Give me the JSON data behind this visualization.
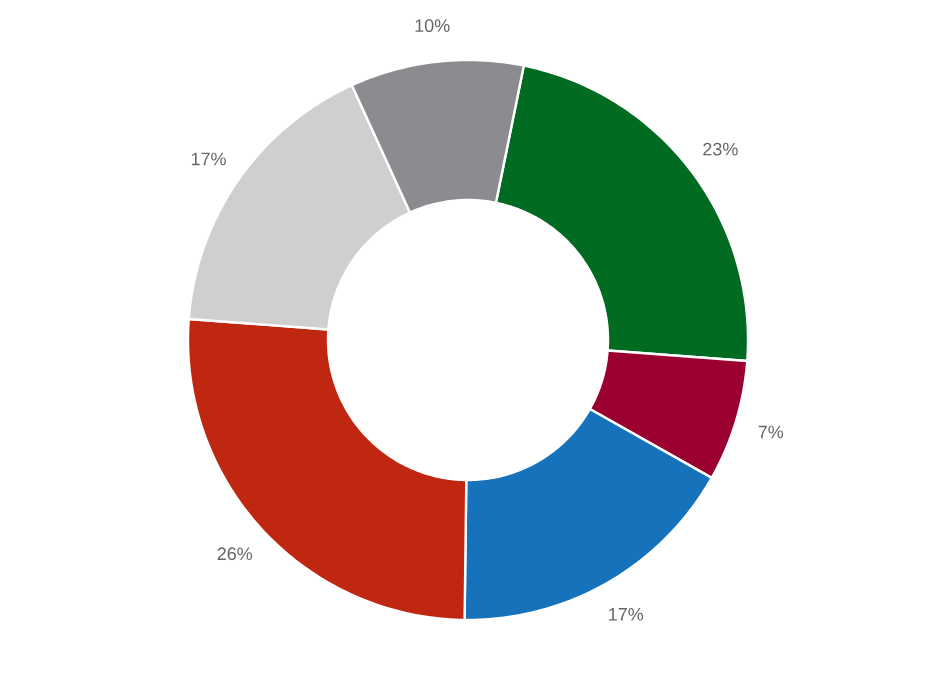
{
  "chart_data": {
    "type": "donut",
    "categories": [
      null,
      null,
      null,
      null,
      null,
      null
    ],
    "values": [
      23,
      7,
      17,
      26,
      17,
      10
    ],
    "colors": [
      "#006b21",
      "#9b0030",
      "#1672bb",
      "#bf2710",
      "#cfcfcf",
      "#8c8c90"
    ],
    "value_labels": [
      "23%",
      "7%",
      "17%",
      "26%",
      "17%",
      "10%"
    ]
  }
}
